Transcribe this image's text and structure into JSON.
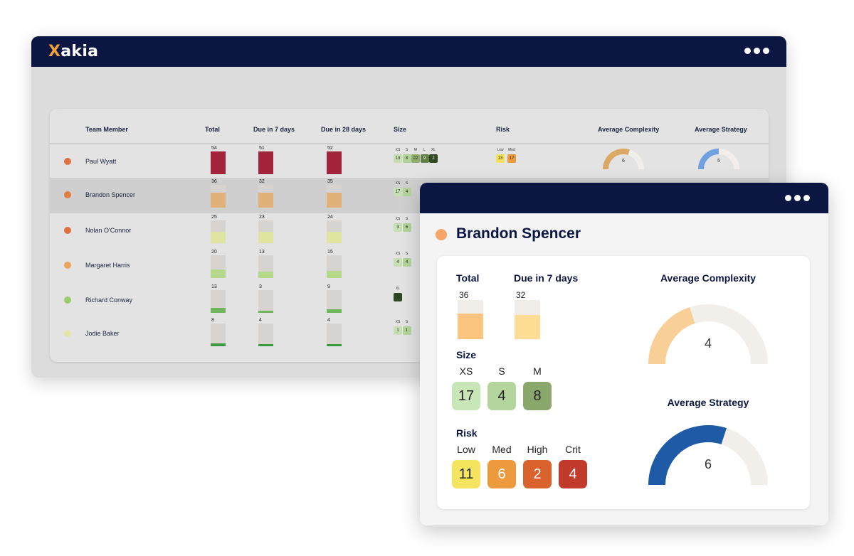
{
  "app": {
    "logo_mark": "X",
    "logo_text": "akia"
  },
  "table": {
    "headers": {
      "member": "Team Member",
      "total": "Total",
      "due7": "Due in 7 days",
      "due28": "Due in 28 days",
      "size": "Size",
      "risk": "Risk",
      "complexity": "Average Complexity",
      "strategy": "Average Strategy"
    },
    "rows": [
      {
        "name": "Paul Wyatt",
        "dot": "#e0703f",
        "total": "54",
        "due7": "51",
        "due28": "52",
        "total_frac": 1.0,
        "due7_frac": 1.0,
        "due28_frac": 1.0,
        "bar_color": "#a3233a",
        "size_labels": [
          "XS",
          "S",
          "M",
          "L",
          "XL"
        ],
        "size_values": [
          "13",
          "8",
          "22",
          "9",
          "2"
        ],
        "size_colors": [
          "#c7dfb4",
          "#b3d39a",
          "#8fae6e",
          "#5f7f45",
          "#2f4a22"
        ],
        "risk_labels": [
          "Low",
          "Med"
        ],
        "risk_values": [
          "13",
          "17"
        ],
        "risk_colors": [
          "#f4e05a",
          "#ec9a3c"
        ],
        "complexity": "6",
        "strategy": "5",
        "complexity_frac": 0.6,
        "strategy_frac": 0.5
      },
      {
        "name": "Brandon Spencer",
        "dot": "#e0803f",
        "total": "36",
        "due7": "32",
        "due28": "35",
        "total_frac": 0.66,
        "due7_frac": 0.66,
        "due28_frac": 0.66,
        "bar_color": "#e0b27a",
        "size_labels": [
          "XS",
          "S"
        ],
        "size_values": [
          "17",
          "4"
        ],
        "size_colors": [
          "#c7dfb4",
          "#b3d39a"
        ]
      },
      {
        "name": "Nolan O'Connor",
        "dot": "#e0703f",
        "total": "25",
        "due7": "23",
        "due28": "24",
        "total_frac": 0.5,
        "due7_frac": 0.5,
        "due28_frac": 0.5,
        "bar_color": "#dfe5a0",
        "size_labels": [
          "XS",
          "S"
        ],
        "size_values": [
          "3",
          "6"
        ],
        "size_colors": [
          "#c7dfb4",
          "#b3d39a"
        ]
      },
      {
        "name": "Margaret Harris",
        "dot": "#e8a560",
        "total": "20",
        "due7": "13",
        "due28": "15",
        "total_frac": 0.38,
        "due7_frac": 0.28,
        "due28_frac": 0.3,
        "bar_color": "#b5d88a",
        "size_labels": [
          "XS",
          "S"
        ],
        "size_values": [
          "4",
          "4"
        ],
        "size_colors": [
          "#c7dfb4",
          "#b3d39a"
        ]
      },
      {
        "name": "Richard Conway",
        "dot": "#9ccc6a",
        "total": "13",
        "due7": "3",
        "due28": "9",
        "total_frac": 0.22,
        "due7_frac": 0.06,
        "due28_frac": 0.16,
        "bar_color": "#6fb55a",
        "size_labels": [
          "XL"
        ],
        "size_values": [
          "1"
        ],
        "size_colors": [
          "#2f4a22"
        ]
      },
      {
        "name": "Jodie Baker",
        "dot": "#e2e6a8",
        "total": "8",
        "due7": "4",
        "due28": "4",
        "total_frac": 0.14,
        "due7_frac": 0.07,
        "due28_frac": 0.07,
        "bar_color": "#3a9a3e",
        "size_labels": [
          "XS",
          "S"
        ],
        "size_values": [
          "1",
          "1"
        ],
        "size_colors": [
          "#c7dfb4",
          "#b3d39a"
        ]
      }
    ]
  },
  "detail": {
    "name": "Brandon Spencer",
    "dot": "#f5a566",
    "total_label": "Total",
    "total_value": "36",
    "total_frac": 0.66,
    "due7_label": "Due in 7 days",
    "due7_value": "32",
    "due7_frac": 0.62,
    "size_label": "Size",
    "sizes": [
      {
        "label": "XS",
        "value": "17",
        "color": "#c9e6b8"
      },
      {
        "label": "S",
        "value": "4",
        "color": "#b4d59d"
      },
      {
        "label": "M",
        "value": "8",
        "color": "#8aa86b"
      }
    ],
    "risk_label": "Risk",
    "risks": [
      {
        "label": "Low",
        "value": "11",
        "color": "#f5e45e",
        "text": "#222"
      },
      {
        "label": "Med",
        "value": "6",
        "color": "#ec9a3c",
        "text": "#fff"
      },
      {
        "label": "High",
        "value": "2",
        "color": "#d9622d",
        "text": "#fff"
      },
      {
        "label": "Crit",
        "value": "4",
        "color": "#c23a2c",
        "text": "#fff"
      }
    ],
    "complexity_label": "Average Complexity",
    "complexity_value": "4",
    "complexity_frac": 0.4,
    "complexity_color": "#f8cf96",
    "strategy_label": "Average Strategy",
    "strategy_value": "6",
    "strategy_frac": 0.6,
    "strategy_color": "#1f5aa6"
  }
}
